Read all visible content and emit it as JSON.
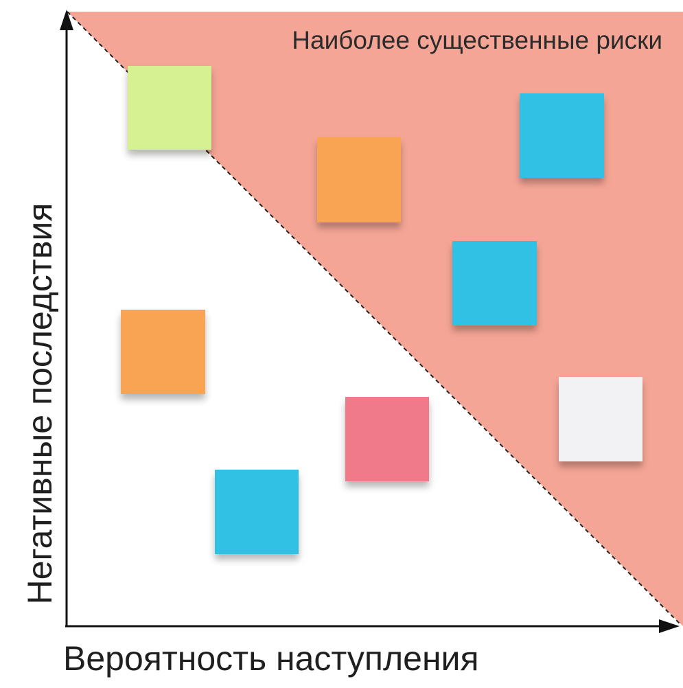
{
  "labels": {
    "risk_zone": "Наиболее существенные риски",
    "x_axis": "Вероятность наступления",
    "y_axis": "Негативные последствия"
  },
  "colors": {
    "risk_zone_fill": "#f5a595",
    "axis": "#111111",
    "divider": "#222222",
    "background": "#ffffff"
  },
  "notes": [
    {
      "id": "note-1",
      "color": "#d3f08a",
      "zone": "low"
    },
    {
      "id": "note-2",
      "color": "#f99e45",
      "zone": "high"
    },
    {
      "id": "note-3",
      "color": "#22bde3",
      "zone": "high"
    },
    {
      "id": "note-4",
      "color": "#22bde3",
      "zone": "high"
    },
    {
      "id": "note-5",
      "color": "#f99e45",
      "zone": "low"
    },
    {
      "id": "note-6",
      "color": "#ef6f82",
      "zone": "low"
    },
    {
      "id": "note-7",
      "color": "#f2f2f4",
      "zone": "high"
    },
    {
      "id": "note-8",
      "color": "#22bde3",
      "zone": "low"
    }
  ]
}
